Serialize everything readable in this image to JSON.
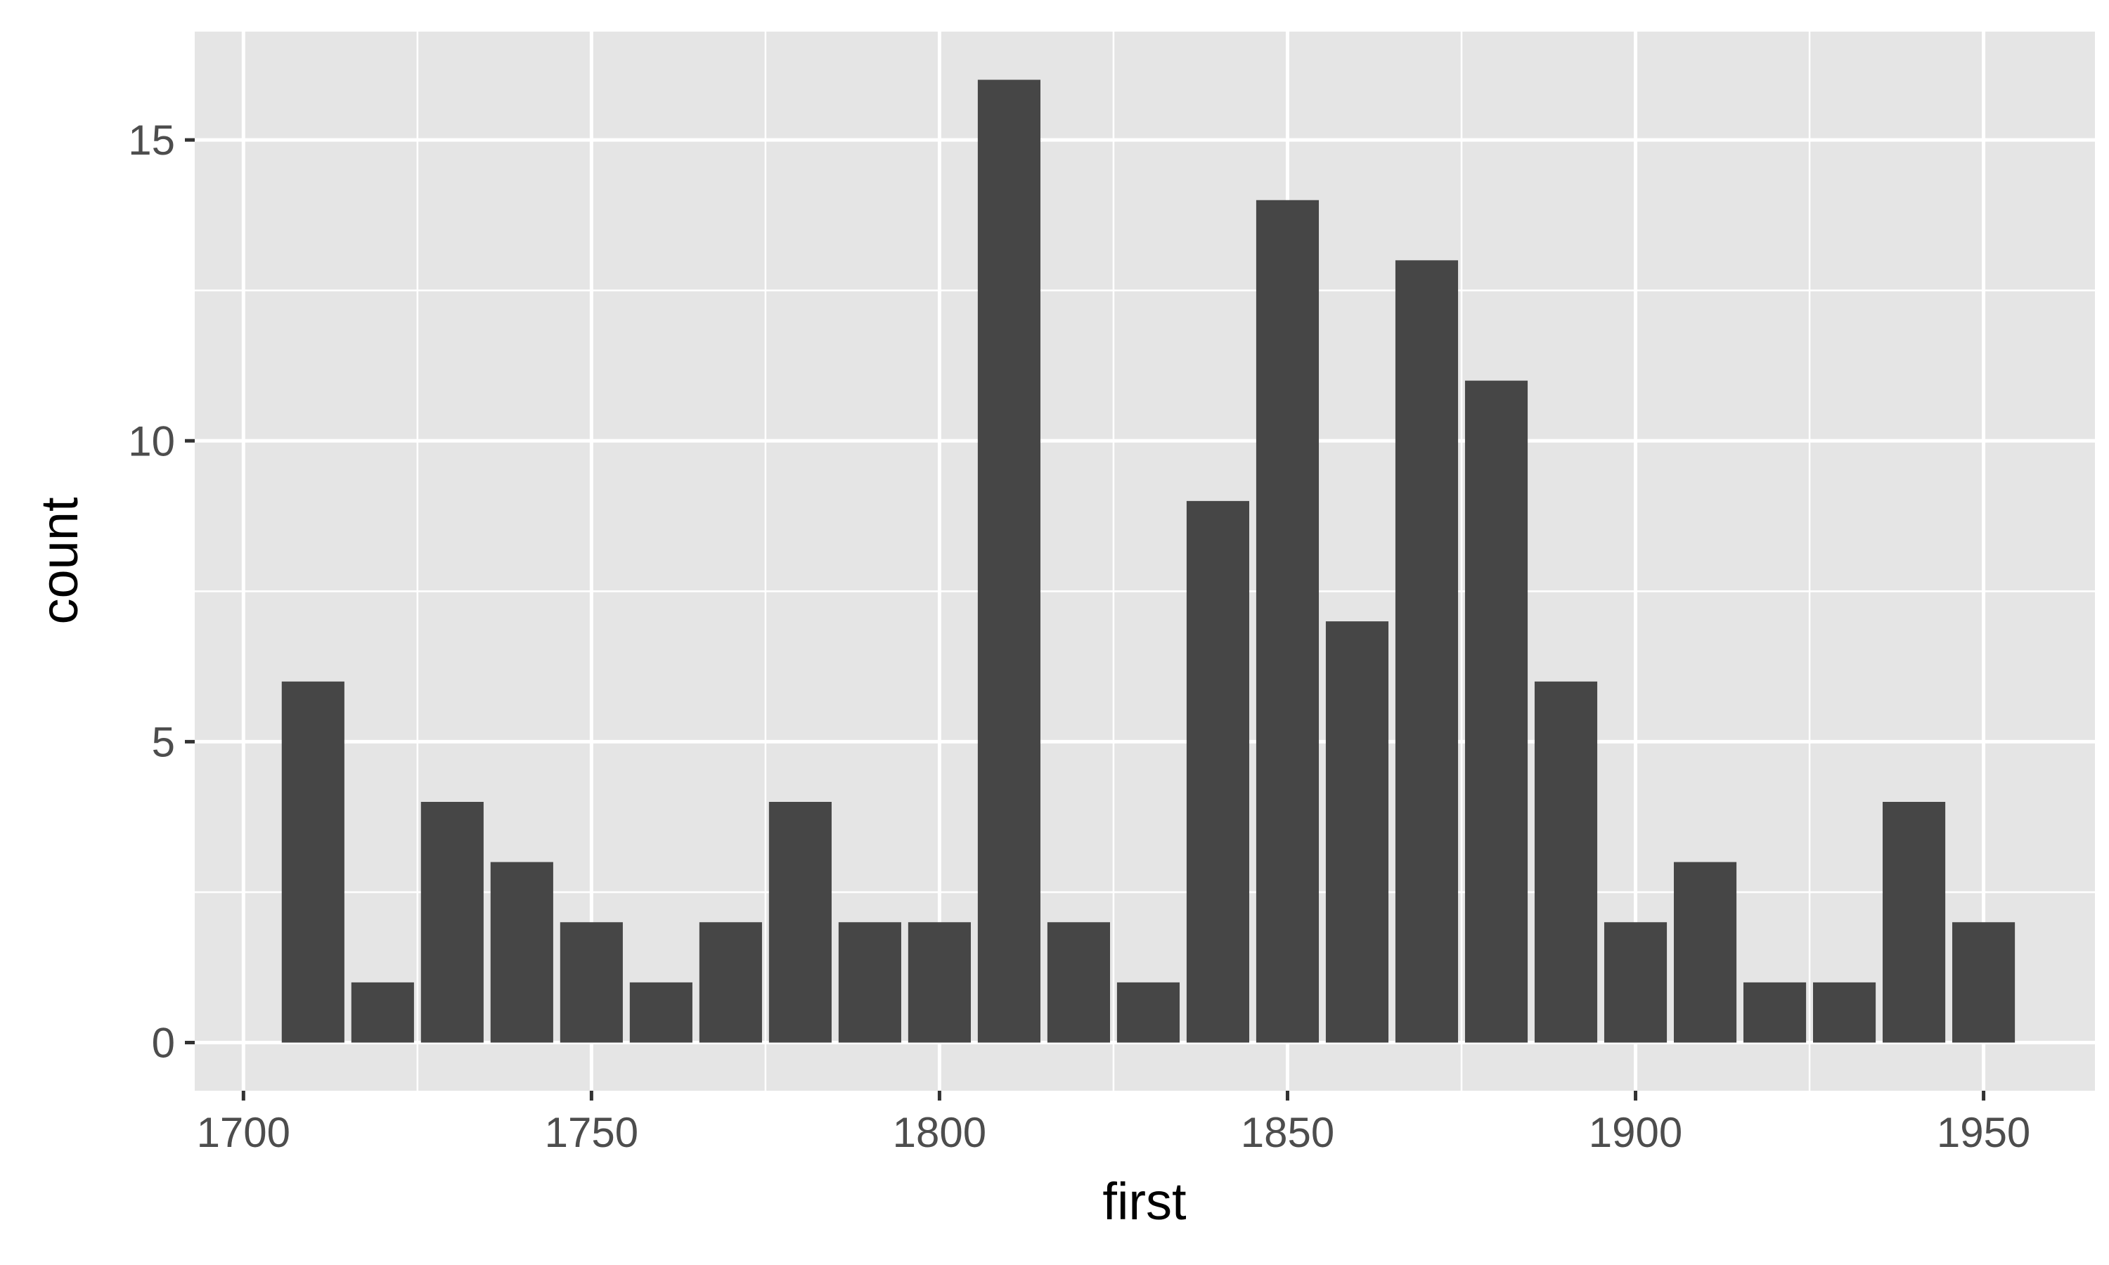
{
  "chart_data": {
    "type": "bar",
    "title": "",
    "xlabel": "first",
    "ylabel": "count",
    "binwidth": 10,
    "x": [
      1710,
      1720,
      1730,
      1740,
      1750,
      1760,
      1770,
      1780,
      1790,
      1800,
      1810,
      1820,
      1830,
      1840,
      1850,
      1860,
      1870,
      1880,
      1890,
      1900,
      1910,
      1920,
      1930,
      1940,
      1950
    ],
    "values": [
      6,
      1,
      4,
      3,
      2,
      1,
      2,
      4,
      2,
      2,
      16,
      2,
      1,
      9,
      14,
      7,
      13,
      11,
      6,
      2,
      3,
      1,
      1,
      4,
      2
    ],
    "xlim": [
      1693,
      1966
    ],
    "ylim": [
      -0.8,
      16.8
    ],
    "xticks": [
      1700,
      1750,
      1800,
      1850,
      1900,
      1950
    ],
    "xtick_labels": [
      "1700",
      "1750",
      "1800",
      "1850",
      "1900",
      "1950"
    ],
    "yticks": [
      0,
      5,
      10,
      15
    ],
    "ytick_labels": [
      "0",
      "5",
      "10",
      "15"
    ],
    "grid": true,
    "legend": "none",
    "colors": {
      "panel": "#e5e5e5",
      "bar": "#464646",
      "grid": "#ffffff"
    }
  }
}
